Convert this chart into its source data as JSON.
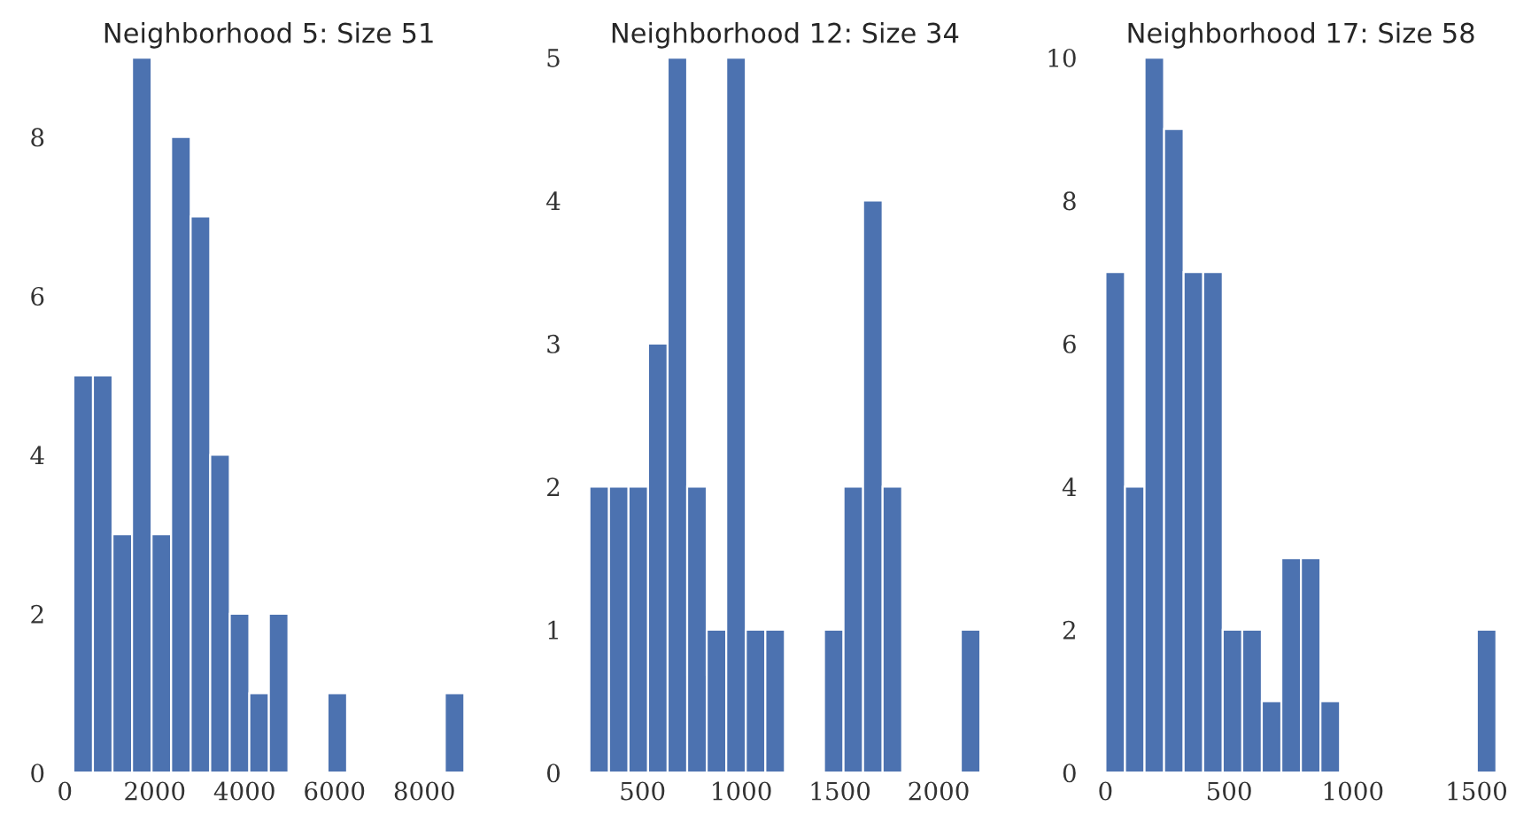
{
  "chart_data": [
    {
      "type": "histogram",
      "title": "Neighborhood 5: Size 51",
      "color": "#4c72b0",
      "bins": [
        190,
        625,
        1060,
        1495,
        1930,
        2365,
        2800,
        3235,
        3670,
        4105,
        4540,
        4975,
        5410,
        5845,
        6280,
        6715,
        7150,
        7585,
        8020,
        8455,
        8890
      ],
      "values": [
        5,
        5,
        3,
        9,
        3,
        8,
        7,
        4,
        2,
        1,
        2,
        0,
        0,
        1,
        0,
        0,
        0,
        0,
        0,
        1
      ],
      "xlim": [
        -245,
        9325
      ],
      "xticks": [
        0,
        2000,
        4000,
        6000,
        8000
      ],
      "ylim": [
        0,
        9
      ],
      "yticks": [
        0,
        2,
        4,
        6,
        8
      ],
      "grid": false
    },
    {
      "type": "histogram",
      "title": "Neighborhood 12: Size 34",
      "color": "#4c72b0",
      "bins": [
        231,
        330,
        429,
        528,
        627,
        726,
        825,
        924,
        1023,
        1122,
        1221,
        1320,
        1419,
        1518,
        1617,
        1716,
        1815,
        1914,
        2013,
        2112,
        2211
      ],
      "values": [
        2,
        2,
        2,
        3,
        5,
        2,
        1,
        5,
        1,
        1,
        0,
        0,
        1,
        2,
        4,
        2,
        0,
        0,
        0,
        1
      ],
      "xlim": [
        132,
        2310
      ],
      "xticks": [
        500,
        1000,
        1500,
        2000
      ],
      "ylim": [
        0,
        5
      ],
      "yticks": [
        0,
        1,
        2,
        3,
        4,
        5
      ],
      "grid": false
    },
    {
      "type": "histogram",
      "title": "Neighborhood 17: Size 58",
      "color": "#4c72b0",
      "bins": [
        0,
        79,
        158,
        237,
        316,
        395,
        474,
        553,
        632,
        711,
        790,
        869,
        948,
        1027,
        1106,
        1185,
        1264,
        1343,
        1422,
        1501,
        1580
      ],
      "values": [
        7,
        4,
        10,
        9,
        7,
        7,
        2,
        2,
        1,
        3,
        3,
        1,
        0,
        0,
        0,
        0,
        0,
        0,
        0,
        2
      ],
      "xlim": [
        -79,
        1659
      ],
      "xticks": [
        0,
        500,
        1000,
        1500
      ],
      "ylim": [
        0,
        10
      ],
      "yticks": [
        0,
        2,
        4,
        6,
        8,
        10
      ],
      "grid": false
    }
  ]
}
